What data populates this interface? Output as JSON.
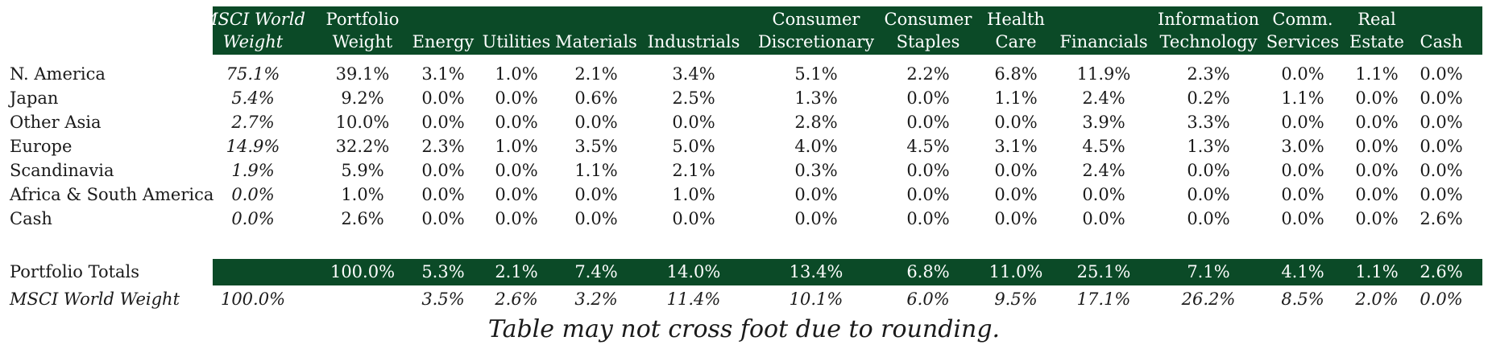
{
  "headers": [
    [
      "MSCI World",
      "Weight"
    ],
    [
      "Portfolio",
      "Weight"
    ],
    [
      "",
      "Energy"
    ],
    [
      "",
      "Utilities"
    ],
    [
      "",
      "Materials"
    ],
    [
      "",
      "Industrials"
    ],
    [
      "Consumer",
      "Discretionary"
    ],
    [
      "Consumer",
      "Staples"
    ],
    [
      "Health",
      "Care"
    ],
    [
      "",
      "Financials"
    ],
    [
      "Information",
      "Technology"
    ],
    [
      "Comm.",
      "Services"
    ],
    [
      "Real",
      "Estate"
    ],
    [
      "",
      "Cash"
    ]
  ],
  "rows": [
    {
      "label": "N. America",
      "values": [
        "75.1%",
        "39.1%",
        "3.1%",
        "1.0%",
        "2.1%",
        "3.4%",
        "5.1%",
        "2.2%",
        "6.8%",
        "11.9%",
        "2.3%",
        "0.0%",
        "1.1%",
        "0.0%"
      ]
    },
    {
      "label": "Japan",
      "values": [
        "5.4%",
        "9.2%",
        "0.0%",
        "0.0%",
        "0.6%",
        "2.5%",
        "1.3%",
        "0.0%",
        "1.1%",
        "2.4%",
        "0.2%",
        "1.1%",
        "0.0%",
        "0.0%"
      ]
    },
    {
      "label": "Other Asia",
      "values": [
        "2.7%",
        "10.0%",
        "0.0%",
        "0.0%",
        "0.0%",
        "0.0%",
        "2.8%",
        "0.0%",
        "0.0%",
        "3.9%",
        "3.3%",
        "0.0%",
        "0.0%",
        "0.0%"
      ]
    },
    {
      "label": "Europe",
      "values": [
        "14.9%",
        "32.2%",
        "2.3%",
        "1.0%",
        "3.5%",
        "5.0%",
        "4.0%",
        "4.5%",
        "3.1%",
        "4.5%",
        "1.3%",
        "3.0%",
        "0.0%",
        "0.0%"
      ]
    },
    {
      "label": "Scandinavia",
      "values": [
        "1.9%",
        "5.9%",
        "0.0%",
        "0.0%",
        "1.1%",
        "2.1%",
        "0.3%",
        "0.0%",
        "0.0%",
        "2.4%",
        "0.0%",
        "0.0%",
        "0.0%",
        "0.0%"
      ]
    },
    {
      "label": "Africa & South America",
      "values": [
        "0.0%",
        "1.0%",
        "0.0%",
        "0.0%",
        "0.0%",
        "1.0%",
        "0.0%",
        "0.0%",
        "0.0%",
        "0.0%",
        "0.0%",
        "0.0%",
        "0.0%",
        "0.0%"
      ]
    },
    {
      "label": "Cash",
      "values": [
        "0.0%",
        "2.6%",
        "0.0%",
        "0.0%",
        "0.0%",
        "0.0%",
        "0.0%",
        "0.0%",
        "0.0%",
        "0.0%",
        "0.0%",
        "0.0%",
        "0.0%",
        "2.6%"
      ]
    }
  ],
  "totals": {
    "label": "Portfolio Totals",
    "values": [
      "",
      "100.0%",
      "5.3%",
      "2.1%",
      "7.4%",
      "14.0%",
      "13.4%",
      "6.8%",
      "11.0%",
      "25.1%",
      "7.1%",
      "4.1%",
      "1.1%",
      "2.6%"
    ]
  },
  "msci": {
    "label": "MSCI World Weight",
    "values": [
      "100.0%",
      "",
      "3.5%",
      "2.6%",
      "3.2%",
      "11.4%",
      "10.1%",
      "6.0%",
      "9.5%",
      "17.1%",
      "26.2%",
      "8.5%",
      "2.0%",
      "0.0%"
    ]
  },
  "note": "Table may not cross foot due to rounding."
}
